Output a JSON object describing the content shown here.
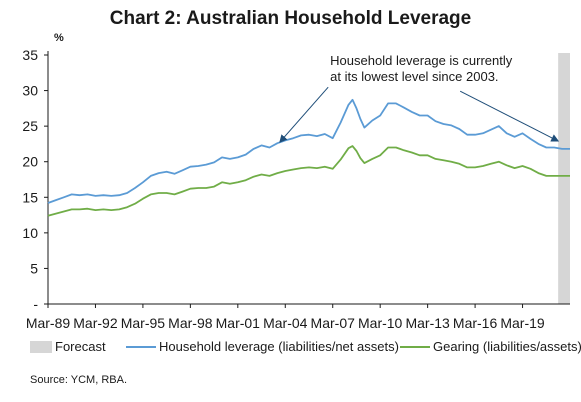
{
  "title": "Chart 2: Australian Household Leverage",
  "source": "Source: YCM, RBA.",
  "legend": {
    "forecast": "Forecast",
    "leverage": "Household leverage (liabilities/net assets)",
    "gearing": "Gearing (liabilities/assets)"
  },
  "colors": {
    "leverage": "#5b9bd5",
    "gearing": "#70ad47",
    "forecast": "#d6d6d6",
    "axis": "#1a1a1a"
  },
  "chart_data": {
    "type": "line",
    "title": "Chart 2: Australian Household Leverage",
    "ylabel": "%",
    "ylim": [
      0,
      35
    ],
    "yticks": [
      0,
      5,
      10,
      15,
      20,
      25,
      30,
      35
    ],
    "ytick_labels": [
      "-",
      "5",
      "10",
      "15",
      "20",
      "25",
      "30",
      "35"
    ],
    "xlim": [
      1989.0,
      2022.0
    ],
    "xtick_labels": [
      "Mar-89",
      "Mar-92",
      "Mar-95",
      "Mar-98",
      "Mar-01",
      "Mar-04",
      "Mar-07",
      "Mar-10",
      "Mar-13",
      "Mar-16",
      "Mar-19"
    ],
    "xticks": [
      1989,
      1992,
      1995,
      1998,
      2001,
      2004,
      2007,
      2010,
      2013,
      2016,
      2019
    ],
    "grid": false,
    "legend_position": "bottom",
    "forecast_region": [
      2021.25,
      2022.0
    ],
    "annotation": {
      "lines": [
        "Household leverage is currently",
        "at its lowest level since 2003."
      ],
      "pointer_from": [
        2010.0,
        30.2
      ],
      "pointer_targets": [
        [
          2003.7,
          22.3
        ],
        [
          2021.2,
          22.4
        ]
      ]
    },
    "series": [
      {
        "name": "Household leverage (liabilities/net assets)",
        "x": [
          1989.0,
          1989.5,
          1990.0,
          1990.5,
          1991.0,
          1991.5,
          1992.0,
          1992.5,
          1993.0,
          1993.5,
          1994.0,
          1994.5,
          1995.0,
          1995.5,
          1996.0,
          1996.5,
          1997.0,
          1997.5,
          1998.0,
          1998.5,
          1999.0,
          1999.5,
          2000.0,
          2000.5,
          2001.0,
          2001.5,
          2002.0,
          2002.5,
          2003.0,
          2003.5,
          2004.0,
          2004.5,
          2005.0,
          2005.5,
          2006.0,
          2006.5,
          2007.0,
          2007.5,
          2008.0,
          2008.25,
          2008.5,
          2008.75,
          2009.0,
          2009.5,
          2010.0,
          2010.5,
          2011.0,
          2011.25,
          2011.5,
          2012.0,
          2012.5,
          2013.0,
          2013.5,
          2014.0,
          2014.5,
          2015.0,
          2015.5,
          2016.0,
          2016.5,
          2017.0,
          2017.5,
          2018.0,
          2018.5,
          2019.0,
          2019.5,
          2020.0,
          2020.5,
          2021.0,
          2021.5,
          2022.0
        ],
        "values": [
          14.2,
          14.6,
          15.0,
          15.4,
          15.3,
          15.4,
          15.2,
          15.3,
          15.2,
          15.3,
          15.6,
          16.3,
          17.1,
          18.0,
          18.4,
          18.6,
          18.3,
          18.8,
          19.3,
          19.4,
          19.6,
          19.9,
          20.6,
          20.4,
          20.6,
          21.0,
          21.8,
          22.3,
          22.0,
          22.6,
          23.0,
          23.3,
          23.7,
          23.8,
          23.6,
          23.9,
          23.3,
          25.5,
          28.0,
          28.7,
          27.5,
          26.0,
          24.8,
          25.8,
          26.5,
          28.2,
          28.2,
          27.9,
          27.6,
          27.0,
          26.5,
          26.5,
          25.7,
          25.3,
          25.1,
          24.6,
          23.8,
          23.8,
          24.0,
          24.5,
          25.0,
          24.0,
          23.5,
          24.0,
          23.2,
          22.5,
          22.0,
          22.0,
          21.8,
          21.8
        ]
      },
      {
        "name": "Gearing (liabilities/assets)",
        "x": [
          1989.0,
          1989.5,
          1990.0,
          1990.5,
          1991.0,
          1991.5,
          1992.0,
          1992.5,
          1993.0,
          1993.5,
          1994.0,
          1994.5,
          1995.0,
          1995.5,
          1996.0,
          1996.5,
          1997.0,
          1997.5,
          1998.0,
          1998.5,
          1999.0,
          1999.5,
          2000.0,
          2000.5,
          2001.0,
          2001.5,
          2002.0,
          2002.5,
          2003.0,
          2003.5,
          2004.0,
          2004.5,
          2005.0,
          2005.5,
          2006.0,
          2006.5,
          2007.0,
          2007.5,
          2008.0,
          2008.25,
          2008.5,
          2008.75,
          2009.0,
          2009.5,
          2010.0,
          2010.5,
          2011.0,
          2011.25,
          2011.5,
          2012.0,
          2012.5,
          2013.0,
          2013.5,
          2014.0,
          2014.5,
          2015.0,
          2015.5,
          2016.0,
          2016.5,
          2017.0,
          2017.5,
          2018.0,
          2018.5,
          2019.0,
          2019.5,
          2020.0,
          2020.5,
          2021.0,
          2021.5,
          2022.0
        ],
        "values": [
          12.4,
          12.7,
          13.0,
          13.3,
          13.3,
          13.4,
          13.2,
          13.3,
          13.2,
          13.3,
          13.6,
          14.1,
          14.8,
          15.4,
          15.6,
          15.6,
          15.4,
          15.8,
          16.2,
          16.3,
          16.3,
          16.5,
          17.1,
          16.9,
          17.1,
          17.4,
          17.9,
          18.2,
          18.0,
          18.4,
          18.7,
          18.9,
          19.1,
          19.2,
          19.1,
          19.3,
          19.0,
          20.3,
          21.9,
          22.2,
          21.5,
          20.5,
          19.8,
          20.4,
          20.9,
          22.0,
          22.0,
          21.8,
          21.6,
          21.3,
          20.9,
          20.9,
          20.4,
          20.2,
          20.0,
          19.7,
          19.2,
          19.2,
          19.4,
          19.7,
          20.0,
          19.5,
          19.1,
          19.4,
          19.0,
          18.4,
          18.0,
          18.0,
          18.0,
          18.0
        ]
      }
    ]
  }
}
